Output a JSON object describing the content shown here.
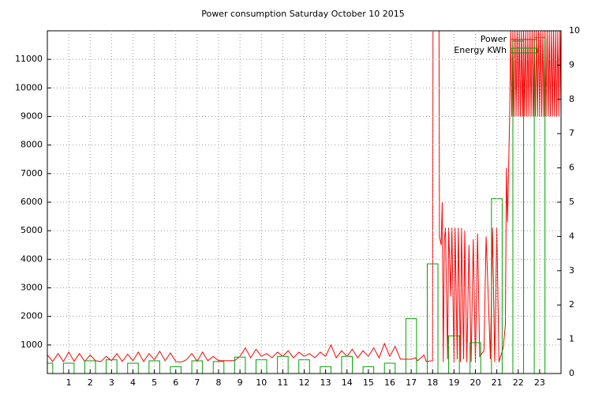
{
  "chart_data": {
    "type": "line",
    "title": "Power consumption Saturday October 10 2015",
    "xlim": [
      0,
      24
    ],
    "xticks": [
      1,
      2,
      3,
      4,
      5,
      6,
      7,
      8,
      9,
      10,
      11,
      12,
      13,
      14,
      15,
      16,
      17,
      18,
      19,
      20,
      21,
      22,
      23
    ],
    "ylim": [
      0,
      12000
    ],
    "yticks": [
      1000,
      2000,
      3000,
      4000,
      5000,
      6000,
      7000,
      8000,
      9000,
      10000,
      11000
    ],
    "y2lim": [
      0,
      10
    ],
    "y2ticks": [
      0,
      1,
      2,
      3,
      4,
      5,
      6,
      7,
      8,
      9,
      10
    ],
    "grid": true,
    "legend": "top-right",
    "series": [
      {
        "name": "Power",
        "color": "#ff0000",
        "style": "line",
        "x": [
          0,
          0.25,
          0.5,
          0.75,
          1,
          1.25,
          1.5,
          1.75,
          2,
          2.25,
          2.5,
          2.75,
          3,
          3.25,
          3.5,
          3.75,
          4,
          4.25,
          4.5,
          4.75,
          5,
          5.25,
          5.5,
          5.75,
          6,
          6.25,
          6.5,
          6.75,
          7,
          7.25,
          7.5,
          7.75,
          8,
          8.25,
          8.5,
          8.75,
          9,
          9.25,
          9.5,
          9.75,
          10,
          10.25,
          10.5,
          10.75,
          11,
          11.25,
          11.5,
          11.75,
          12,
          12.25,
          12.5,
          12.75,
          13,
          13.25,
          13.5,
          13.75,
          14,
          14.25,
          14.5,
          14.75,
          15,
          15.25,
          15.5,
          15.75,
          16,
          16.25,
          16.5,
          16.75,
          17,
          17.2,
          17.3,
          17.6,
          17.7,
          18,
          18.02,
          18.3,
          18.32,
          18.4,
          18.45,
          18.5,
          18.55,
          18.6,
          18.7,
          18.75,
          18.85,
          18.9,
          19,
          19.05,
          19.15,
          19.2,
          19.3,
          19.35,
          19.45,
          19.5,
          19.6,
          19.7,
          19.8,
          19.9,
          20,
          20.1,
          20.2,
          20.4,
          20.5,
          20.6,
          20.7,
          20.8,
          20.9,
          21,
          21.1,
          21.3,
          21.4,
          21.45,
          21.5,
          21.6,
          21.65,
          21.7,
          21.75,
          21.8,
          21.85,
          21.9,
          21.95,
          22,
          22.05,
          22.1,
          22.15,
          22.2,
          22.25,
          22.3,
          22.35,
          22.4,
          22.45,
          22.5,
          22.55,
          22.6,
          22.65,
          22.7,
          22.75,
          22.8,
          22.85,
          22.9,
          22.95,
          23,
          23.05,
          23.1,
          23.15,
          23.2,
          23.25,
          23.3,
          23.35,
          23.4,
          23.45,
          23.5,
          23.55,
          23.6,
          23.65,
          23.7,
          23.75,
          23.8,
          23.85,
          23.9,
          23.95,
          24
        ],
        "values": [
          650,
          420,
          700,
          420,
          750,
          430,
          700,
          420,
          650,
          450,
          420,
          600,
          450,
          700,
          420,
          680,
          450,
          750,
          420,
          700,
          480,
          780,
          450,
          720,
          420,
          400,
          480,
          700,
          430,
          750,
          450,
          600,
          450,
          450,
          450,
          450,
          600,
          900,
          550,
          850,
          600,
          700,
          550,
          750,
          600,
          800,
          550,
          750,
          600,
          700,
          550,
          750,
          600,
          1000,
          550,
          800,
          600,
          850,
          550,
          800,
          600,
          900,
          550,
          1050,
          600,
          950,
          500,
          500,
          500,
          550,
          450,
          650,
          420,
          450,
          12000,
          12000,
          4800,
          4500,
          6000,
          400,
          4700,
          5100,
          500,
          5100,
          2700,
          5100,
          400,
          5100,
          500,
          5100,
          400,
          5100,
          500,
          5000,
          400,
          4500,
          400,
          4700,
          400,
          4900,
          600,
          800,
          4800,
          2700,
          500,
          5100,
          400,
          5100,
          400,
          900,
          1700,
          7200,
          5300,
          9000,
          12000,
          9000,
          12000,
          9000,
          12000,
          9000,
          12000,
          9000,
          12000,
          9000,
          12000,
          9000,
          12000,
          9000,
          12000,
          9000,
          12000,
          9000,
          12000,
          9000,
          12000,
          9000,
          12000,
          9000,
          12000,
          9000,
          12000,
          9000,
          12000,
          9000,
          12000,
          9000,
          12000,
          9000,
          12000,
          9000,
          12000,
          9000,
          12000,
          9000,
          12000,
          9000,
          12000,
          9000,
          12000,
          9000,
          12000,
          9000
        ]
      },
      {
        "name": "Energy KWh",
        "color": "#00a000",
        "style": "boxes",
        "axis": "y2",
        "box_width": 0.5,
        "x": [
          0,
          1,
          2,
          3,
          4,
          5,
          6,
          7,
          8,
          9,
          10,
          11,
          12,
          13,
          14,
          15,
          16,
          17,
          18,
          19,
          20,
          21,
          22,
          23
        ],
        "values": [
          0.3,
          0.3,
          0.37,
          0.4,
          0.3,
          0.37,
          0.2,
          0.37,
          0.35,
          0.48,
          0.4,
          0.5,
          0.4,
          0.2,
          0.5,
          0.2,
          0.3,
          1.6,
          3.2,
          1.1,
          0.9,
          5.1,
          9.7,
          9.8
        ]
      }
    ]
  }
}
